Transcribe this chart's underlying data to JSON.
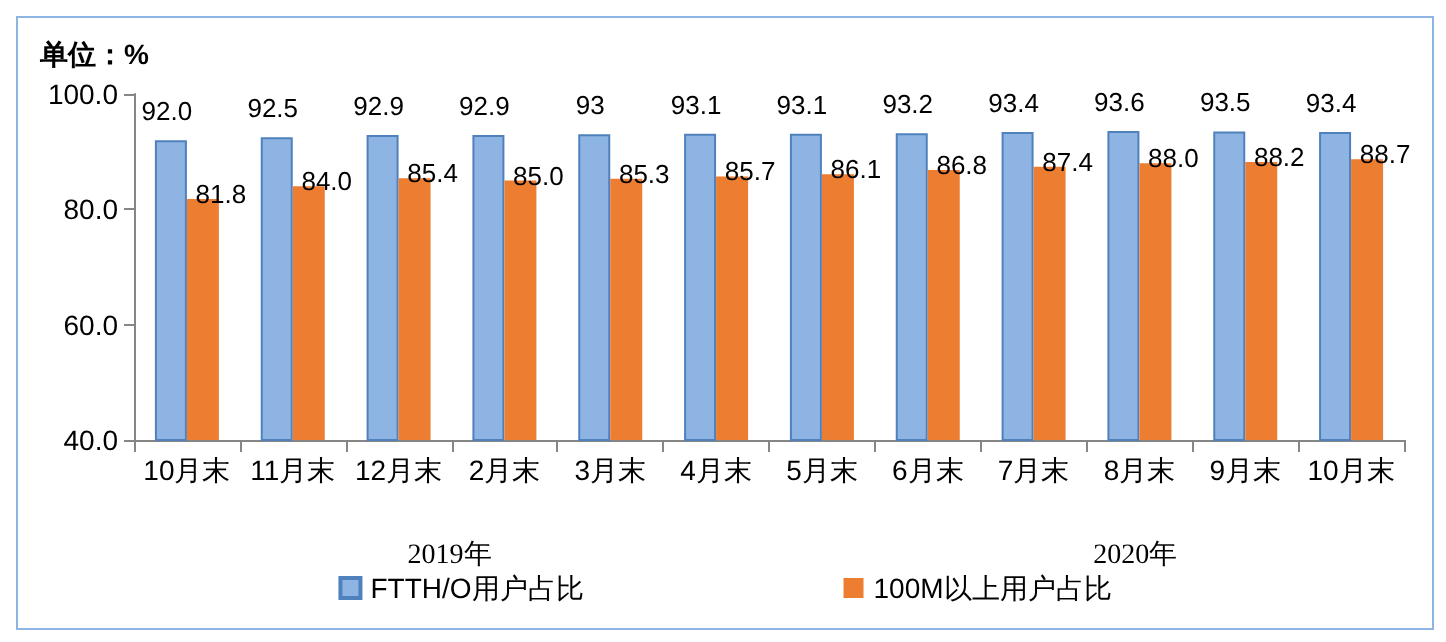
{
  "chart_data": {
    "type": "bar",
    "ylabel": "单位：%",
    "categories": [
      "10月末",
      "11月末",
      "12月末",
      "2月末",
      "3月末",
      "4月末",
      "5月末",
      "6月末",
      "7月末",
      "8月末",
      "9月末",
      "10月末"
    ],
    "series": [
      {
        "name": "FTTH/O用户占比",
        "color": "#8db4e2",
        "values": [
          92.0,
          92.5,
          92.9,
          92.9,
          93,
          93.1,
          93.1,
          93.2,
          93.4,
          93.6,
          93.5,
          93.4
        ],
        "value_labels": [
          "92.0",
          "92.5",
          "92.9",
          "92.9",
          "93",
          "93.1",
          "93.1",
          "93.2",
          "93.4",
          "93.6",
          "93.5",
          "93.4"
        ]
      },
      {
        "name": "100M以上用户占比",
        "color": "#ed7d31",
        "values": [
          81.8,
          84.0,
          85.4,
          85.0,
          85.3,
          85.7,
          86.1,
          86.8,
          87.4,
          88.0,
          88.2,
          88.7
        ],
        "value_labels": [
          "81.8",
          "84.0",
          "85.4",
          "85.0",
          "85.3",
          "85.7",
          "86.1",
          "86.8",
          "87.4",
          "88.0",
          "88.2",
          "88.7"
        ]
      }
    ],
    "ylim": [
      40,
      100
    ],
    "yticks": [
      {
        "value": 40,
        "label": "40.0"
      },
      {
        "value": 60,
        "label": "60.0"
      },
      {
        "value": 80,
        "label": "80.0"
      },
      {
        "value": 100,
        "label": "100.0"
      }
    ],
    "grid": false,
    "legend": "bottom",
    "annotations": [
      "2019年",
      "2020年"
    ]
  }
}
